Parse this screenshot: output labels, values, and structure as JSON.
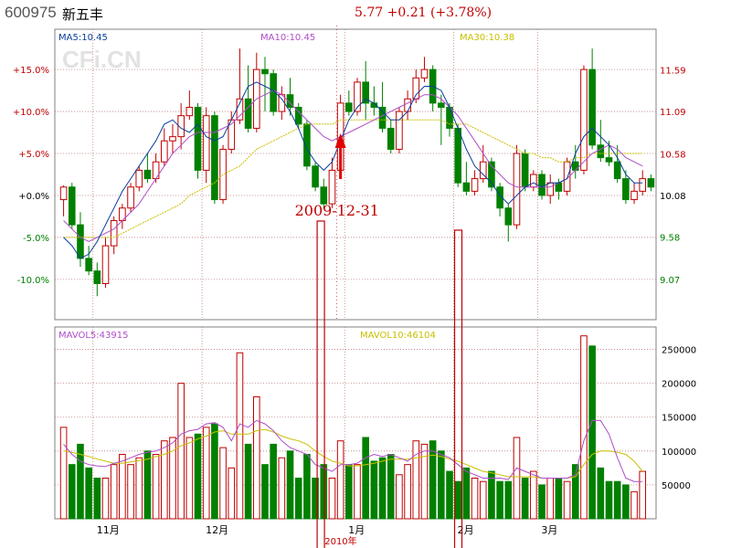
{
  "header": {
    "code": "600975",
    "name": "新五丰",
    "quote": "5.77 +0.21 (+3.78%)"
  },
  "watermark": "CFi.CN",
  "annotation": {
    "date": "2009-12-31"
  },
  "chart_data": [
    {
      "type": "candlestick",
      "title": "",
      "ma_labels": {
        "ma5": "MA5:10.45",
        "ma10": "MA10:10.45",
        "ma30": "MA30:10.38"
      },
      "left_ticks": [
        "+15.0%",
        "+10.0%",
        "+5.0%",
        "+0.0%",
        "-5.0%",
        "-10.0%"
      ],
      "left_tick_values": [
        15,
        10,
        5,
        0,
        -5,
        -10
      ],
      "right_ticks": [
        "11.59",
        "11.09",
        "10.58",
        "10.08",
        "9.58",
        "9.07"
      ],
      "right_tick_values": [
        11.59,
        11.09,
        10.58,
        10.08,
        9.58,
        9.07
      ],
      "base_price": 10.08,
      "y_range_pct": [
        -14.8,
        19.8
      ],
      "x_labels": [
        "11月",
        "12月",
        "1月",
        "2月",
        "3月"
      ],
      "x_label_at": [
        4,
        17,
        34,
        47,
        57
      ],
      "year_label": "2010年",
      "grid": true,
      "colors": {
        "up": "#c00000",
        "down": "#008000",
        "ma5": "#0a3f9a",
        "ma10": "#b04cc8",
        "ma30": "#c8c000",
        "grid": "#c08080"
      },
      "candles": [
        [
          -0.5,
          1.0,
          1.2,
          -2.5
        ],
        [
          1.0,
          -3.5,
          1.5,
          -4.0
        ],
        [
          -3.5,
          -7.5,
          -2.0,
          -8.5
        ],
        [
          -7.5,
          -9.0,
          -6.0,
          -9.5
        ],
        [
          -9.0,
          -10.5,
          -8.0,
          -12.0
        ],
        [
          -10.5,
          -6.0,
          -5.0,
          -11.0
        ],
        [
          -6.0,
          -3.0,
          -2.5,
          -7.0
        ],
        [
          -3.0,
          -1.5,
          -1.0,
          -4.0
        ],
        [
          -1.5,
          1.0,
          1.5,
          -2.0
        ],
        [
          1.0,
          3.0,
          3.5,
          0.5
        ],
        [
          3.0,
          2.0,
          5.0,
          1.5
        ],
        [
          2.0,
          4.0,
          5.0,
          1.5
        ],
        [
          4.0,
          6.5,
          8.0,
          3.5
        ],
        [
          6.5,
          7.0,
          8.5,
          5.0
        ],
        [
          7.0,
          9.5,
          11.0,
          5.5
        ],
        [
          9.5,
          10.5,
          12.5,
          9.0
        ],
        [
          10.5,
          3.0,
          11.0,
          2.0
        ],
        [
          3.0,
          9.5,
          10.5,
          1.5
        ],
        [
          9.5,
          -0.5,
          10.0,
          -1.0
        ],
        [
          -0.5,
          5.5,
          6.0,
          -1.0
        ],
        [
          5.5,
          9.0,
          10.0,
          5.0
        ],
        [
          9.0,
          11.5,
          17.5,
          8.5
        ],
        [
          11.5,
          8.0,
          15.5,
          7.5
        ],
        [
          8.0,
          15.0,
          17.0,
          7.5
        ],
        [
          15.0,
          14.5,
          16.5,
          10.0
        ],
        [
          14.5,
          10.0,
          15.0,
          9.5
        ],
        [
          10.0,
          12.0,
          13.0,
          9.0
        ],
        [
          12.0,
          10.5,
          14.0,
          9.5
        ],
        [
          10.5,
          8.5,
          11.0,
          8.0
        ],
        [
          8.5,
          3.5,
          9.0,
          3.0
        ],
        [
          3.5,
          1.0,
          4.0,
          0.5
        ],
        [
          1.0,
          -1.0,
          2.0,
          -1.5
        ],
        [
          -1.0,
          3.0,
          4.5,
          -1.5
        ],
        [
          3.0,
          11.0,
          12.0,
          2.5
        ],
        [
          11.0,
          10.0,
          12.5,
          9.5
        ],
        [
          10.0,
          13.5,
          14.0,
          9.5
        ],
        [
          13.5,
          11.0,
          16.0,
          9.0
        ],
        [
          11.0,
          10.5,
          13.0,
          9.5
        ],
        [
          10.5,
          8.0,
          13.5,
          7.5
        ],
        [
          8.0,
          5.5,
          9.0,
          5.0
        ],
        [
          5.5,
          10.0,
          10.5,
          5.0
        ],
        [
          10.0,
          11.5,
          12.5,
          9.0
        ],
        [
          11.5,
          14.0,
          15.0,
          11.0
        ],
        [
          14.0,
          15.0,
          16.5,
          13.5
        ],
        [
          15.0,
          11.0,
          15.5,
          10.0
        ],
        [
          11.0,
          10.5,
          12.0,
          6.0
        ],
        [
          10.5,
          8.0,
          11.0,
          7.0
        ],
        [
          8.0,
          1.5,
          8.5,
          1.0
        ],
        [
          1.5,
          0.5,
          4.0,
          0.0
        ],
        [
          0.5,
          2.0,
          3.0,
          0.0
        ],
        [
          2.0,
          4.0,
          6.0,
          1.5
        ],
        [
          4.0,
          1.0,
          4.5,
          0.5
        ],
        [
          1.0,
          -1.5,
          1.5,
          -2.5
        ],
        [
          -1.5,
          -3.5,
          -1.0,
          -5.5
        ],
        [
          -3.5,
          5.0,
          6.0,
          -4.0
        ],
        [
          5.0,
          1.0,
          5.5,
          0.5
        ],
        [
          1.0,
          2.5,
          3.0,
          0.5
        ],
        [
          2.5,
          0.0,
          3.0,
          -0.5
        ],
        [
          0.0,
          1.5,
          2.5,
          -1.0
        ],
        [
          1.5,
          0.5,
          2.0,
          -0.5
        ],
        [
          0.5,
          4.0,
          4.5,
          0.0
        ],
        [
          4.0,
          3.0,
          6.0,
          2.0
        ],
        [
          3.0,
          15.0,
          15.5,
          2.5
        ],
        [
          15.0,
          6.0,
          17.5,
          5.5
        ],
        [
          6.0,
          4.5,
          9.0,
          4.0
        ],
        [
          4.5,
          4.0,
          6.5,
          3.5
        ],
        [
          4.0,
          2.0,
          6.0,
          1.5
        ],
        [
          2.0,
          -0.5,
          3.0,
          -1.0
        ],
        [
          -0.5,
          0.5,
          1.5,
          -1.0
        ],
        [
          0.5,
          2.0,
          3.0,
          0.0
        ],
        [
          2.0,
          1.0,
          2.5,
          0.5
        ]
      ],
      "ma5": [
        -5,
        -6,
        -7.5,
        -7,
        -5.5,
        -3.5,
        -1.5,
        0.5,
        2,
        3.5,
        5,
        6.5,
        8.5,
        9,
        8,
        7.5,
        8.5,
        7,
        6.5,
        7,
        9,
        11,
        13,
        13.5,
        13,
        12.5,
        11.5,
        10,
        8,
        5.5,
        4,
        3,
        4,
        6.5,
        9,
        10.5,
        11.5,
        11,
        10,
        9,
        9,
        10,
        12,
        13,
        13,
        12.5,
        10.5,
        8,
        5.5,
        3.5,
        2.5,
        1.5,
        0,
        -1,
        0,
        1,
        1.5,
        1,
        1.5,
        1.5,
        2,
        5,
        7,
        8,
        7,
        6,
        4.5,
        2.5,
        1.5,
        1.5
      ],
      "ma10": [
        -3,
        -4,
        -5,
        -5.5,
        -5,
        -4.5,
        -4,
        -3,
        -2,
        -1,
        0.5,
        2,
        3.5,
        5,
        6,
        7,
        7.5,
        7.5,
        7.5,
        8,
        8.5,
        9.5,
        10.5,
        11.5,
        12,
        12.5,
        12,
        11,
        10,
        9,
        8,
        7,
        6.5,
        7,
        7.5,
        8,
        8.5,
        9,
        9.5,
        10,
        10.5,
        11,
        11.5,
        12,
        12,
        11.5,
        10.5,
        9.5,
        8,
        6.5,
        5,
        3.5,
        2.5,
        1.5,
        1,
        1,
        1,
        1,
        1,
        1.5,
        2,
        3,
        4,
        5,
        5.5,
        6,
        5.5,
        4.5,
        4,
        3.5
      ],
      "ma30": [
        -5,
        -5,
        -5,
        -5,
        -5,
        -5,
        -5,
        -4.5,
        -4,
        -3.5,
        -3,
        -2.5,
        -2,
        -1.5,
        -1,
        0,
        0.5,
        1,
        1.5,
        2.5,
        3,
        3.5,
        4.5,
        5.5,
        6,
        6.5,
        7,
        7.5,
        8,
        8.5,
        8.5,
        8.5,
        8.5,
        9,
        9,
        9,
        9,
        9,
        9,
        9,
        9,
        9,
        9,
        9,
        9,
        9,
        8.5,
        8.5,
        8.5,
        8,
        7.5,
        7,
        6.5,
        6,
        5.5,
        5,
        5,
        4.5,
        4.5,
        4,
        4,
        4.5,
        4.5,
        5,
        5,
        5,
        5,
        5,
        5,
        5
      ]
    },
    {
      "type": "bar",
      "title": "",
      "ma_labels": {
        "mavol5": "MAVOL5:43915",
        "mavol10": "MAVOL10:46104"
      },
      "y_ticks": [
        "250000",
        "200000",
        "150000",
        "100000",
        "50000"
      ],
      "y_tick_values": [
        250000,
        200000,
        150000,
        100000,
        50000
      ],
      "ylim": [
        0,
        275000
      ],
      "volumes": [
        135000,
        80000,
        110000,
        75000,
        60000,
        60000,
        80000,
        95000,
        80000,
        90000,
        100000,
        95000,
        115000,
        120000,
        200000,
        120000,
        125000,
        135000,
        140000,
        105000,
        75000,
        245000,
        110000,
        180000,
        80000,
        110000,
        90000,
        100000,
        60000,
        95000,
        60000,
        80000,
        60000,
        115000,
        80000,
        80000,
        120000,
        85000,
        90000,
        95000,
        65000,
        80000,
        115000,
        110000,
        115000,
        100000,
        70000,
        55000,
        75000,
        60000,
        55000,
        70000,
        55000,
        55000,
        120000,
        60000,
        70000,
        50000,
        60000,
        60000,
        55000,
        80000,
        270000,
        255000,
        75000,
        55000,
        55000,
        50000,
        40000,
        70000
      ],
      "mavol5": [
        110000,
        95000,
        85000,
        80000,
        78000,
        77000,
        82000,
        85000,
        90000,
        95000,
        98000,
        100000,
        105000,
        112000,
        125000,
        130000,
        132000,
        140000,
        142000,
        135000,
        115000,
        140000,
        135000,
        145000,
        140000,
        130000,
        115000,
        105000,
        100000,
        95000,
        80000,
        75000,
        70000,
        80000,
        80000,
        82000,
        90000,
        95000,
        92000,
        95000,
        90000,
        85000,
        95000,
        100000,
        100000,
        95000,
        90000,
        80000,
        70000,
        65000,
        60000,
        60000,
        60000,
        58000,
        75000,
        70000,
        65000,
        60000,
        60000,
        60000,
        60000,
        65000,
        115000,
        145000,
        145000,
        125000,
        90000,
        60000,
        55000,
        55000
      ],
      "mavol10": [
        100000,
        98000,
        95000,
        92000,
        88000,
        85000,
        82000,
        82000,
        84000,
        86000,
        88000,
        92000,
        95000,
        100000,
        108000,
        112000,
        118000,
        122000,
        128000,
        130000,
        125000,
        125000,
        125000,
        130000,
        132000,
        128000,
        122000,
        118000,
        115000,
        110000,
        100000,
        92000,
        85000,
        82000,
        78000,
        78000,
        80000,
        82000,
        85000,
        88000,
        88000,
        88000,
        90000,
        92000,
        94000,
        92000,
        88000,
        85000,
        80000,
        75000,
        70000,
        68000,
        65000,
        62000,
        62000,
        62000,
        62000,
        60000,
        60000,
        60000,
        60000,
        62000,
        80000,
        95000,
        100000,
        100000,
        98000,
        95000,
        85000,
        70000
      ]
    }
  ]
}
